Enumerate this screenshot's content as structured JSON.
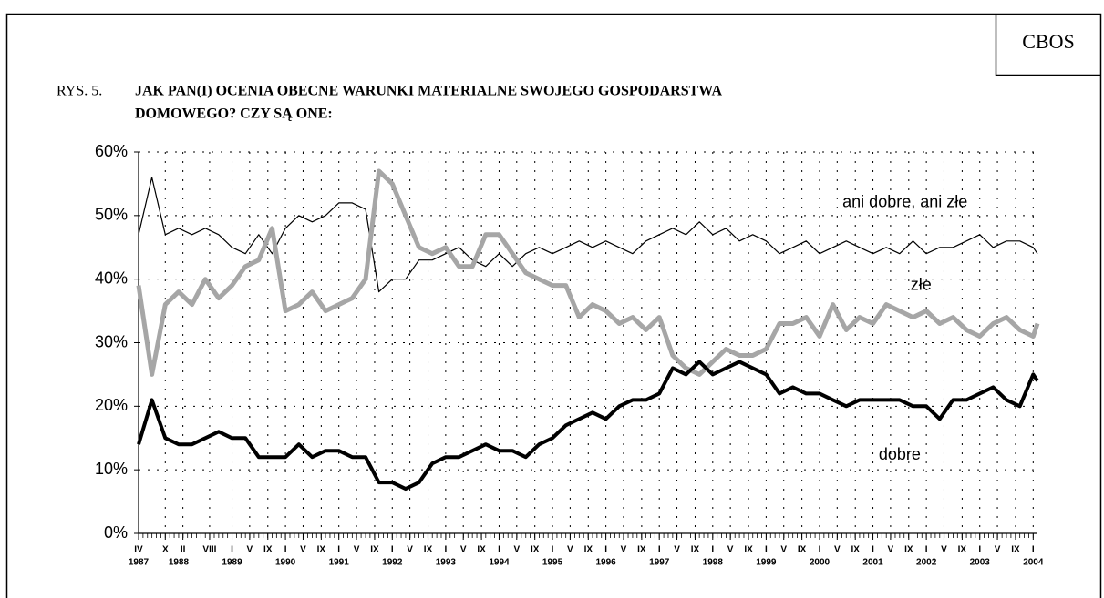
{
  "chart_data": {
    "type": "line",
    "badge": "CBOS",
    "figure_label": "RYS. 5.",
    "title_lines": [
      "JAK PAN(I) OCENIA OBECNE WARUNKI MATERIALNE SWOJEGO GOSPODARSTWA",
      "DOMOWEGO? CZY SĄ ONE:"
    ],
    "x": [
      1987.25,
      1987.5,
      1987.75,
      1988,
      1988.25,
      1988.5,
      1988.75,
      1989,
      1989.25,
      1989.5,
      1989.75,
      1990,
      1990.25,
      1990.5,
      1990.75,
      1991,
      1991.25,
      1991.5,
      1991.75,
      1992,
      1992.25,
      1992.5,
      1992.75,
      1993,
      1993.25,
      1993.5,
      1993.75,
      1994,
      1994.25,
      1994.5,
      1994.75,
      1995,
      1995.25,
      1995.5,
      1995.75,
      1996,
      1996.25,
      1996.5,
      1996.75,
      1997,
      1997.25,
      1997.5,
      1997.75,
      1998,
      1998.25,
      1998.5,
      1998.75,
      1999,
      1999.25,
      1999.5,
      1999.75,
      2000,
      2000.25,
      2000.5,
      2000.75,
      2001,
      2001.25,
      2001.5,
      2001.75,
      2002,
      2002.25,
      2002.5,
      2002.75,
      2003,
      2003.25,
      2003.5,
      2003.75,
      2004,
      2004.08
    ],
    "series": [
      {
        "name": "ani dobre, ani złe",
        "color": "#000000",
        "width": 1.2,
        "values": [
          47,
          56,
          47,
          48,
          47,
          48,
          47,
          45,
          44,
          47,
          44,
          48,
          50,
          49,
          50,
          52,
          52,
          51,
          38,
          40,
          40,
          43,
          43,
          44,
          45,
          43,
          42,
          44,
          42,
          44,
          45,
          44,
          45,
          46,
          45,
          46,
          45,
          44,
          46,
          47,
          48,
          47,
          49,
          47,
          48,
          46,
          47,
          46,
          44,
          45,
          46,
          44,
          45,
          46,
          45,
          44,
          45,
          44,
          46,
          44,
          45,
          45,
          46,
          47,
          45,
          46,
          46,
          45,
          44
        ]
      },
      {
        "name": "złe",
        "color": "#a6a6a6",
        "width": 5,
        "values": [
          39,
          25,
          36,
          38,
          36,
          40,
          37,
          39,
          42,
          43,
          48,
          35,
          36,
          38,
          35,
          36,
          37,
          40,
          57,
          55,
          50,
          45,
          44,
          45,
          42,
          42,
          47,
          47,
          44,
          41,
          40,
          39,
          39,
          34,
          36,
          35,
          33,
          34,
          32,
          34,
          28,
          26,
          25,
          27,
          29,
          28,
          28,
          29,
          33,
          33,
          34,
          31,
          36,
          32,
          34,
          33,
          36,
          35,
          34,
          35,
          33,
          34,
          32,
          31,
          33,
          34,
          32,
          31,
          33
        ]
      },
      {
        "name": "dobre",
        "color": "#000000",
        "width": 4,
        "values": [
          14,
          21,
          15,
          14,
          14,
          15,
          16,
          15,
          15,
          12,
          12,
          12,
          14,
          12,
          13,
          13,
          12,
          12,
          8,
          8,
          7,
          8,
          11,
          12,
          12,
          13,
          14,
          13,
          13,
          12,
          14,
          15,
          17,
          18,
          19,
          18,
          20,
          21,
          21,
          22,
          26,
          25,
          27,
          25,
          26,
          27,
          26,
          25,
          22,
          23,
          22,
          22,
          21,
          20,
          21,
          21,
          21,
          21,
          20,
          20,
          18,
          21,
          21,
          22,
          23,
          21,
          20,
          25,
          24
        ]
      }
    ],
    "xlim": [
      1987.25,
      2004.08
    ],
    "ylim": [
      0,
      60
    ],
    "yticks": [
      {
        "value": 0,
        "label": "0%"
      },
      {
        "value": 10,
        "label": "10%"
      },
      {
        "value": 20,
        "label": "20%"
      },
      {
        "value": 30,
        "label": "30%"
      },
      {
        "value": 40,
        "label": "40%"
      },
      {
        "value": 50,
        "label": "50%"
      },
      {
        "value": 60,
        "label": "60%"
      }
    ],
    "xticks": [
      {
        "value": 1987.25,
        "label": "IV"
      },
      {
        "value": 1987.75,
        "label": "X"
      },
      {
        "value": 1988.08,
        "label": "II"
      },
      {
        "value": 1988.58,
        "label": "VIII"
      },
      {
        "value": 1989,
        "label": "I"
      },
      {
        "value": 1989.33,
        "label": "V"
      },
      {
        "value": 1989.67,
        "label": "IX"
      },
      {
        "value": 1990,
        "label": "I"
      },
      {
        "value": 1990.33,
        "label": "V"
      },
      {
        "value": 1990.67,
        "label": "IX"
      },
      {
        "value": 1991,
        "label": "I"
      },
      {
        "value": 1991.33,
        "label": "V"
      },
      {
        "value": 1991.67,
        "label": "IX"
      },
      {
        "value": 1992,
        "label": "I"
      },
      {
        "value": 1992.33,
        "label": "V"
      },
      {
        "value": 1992.67,
        "label": "IX"
      },
      {
        "value": 1993,
        "label": "I"
      },
      {
        "value": 1993.33,
        "label": "V"
      },
      {
        "value": 1993.67,
        "label": "IX"
      },
      {
        "value": 1994,
        "label": "I"
      },
      {
        "value": 1994.33,
        "label": "V"
      },
      {
        "value": 1994.67,
        "label": "IX"
      },
      {
        "value": 1995,
        "label": "I"
      },
      {
        "value": 1995.33,
        "label": "V"
      },
      {
        "value": 1995.67,
        "label": "IX"
      },
      {
        "value": 1996,
        "label": "I"
      },
      {
        "value": 1996.33,
        "label": "V"
      },
      {
        "value": 1996.67,
        "label": "IX"
      },
      {
        "value": 1997,
        "label": "I"
      },
      {
        "value": 1997.33,
        "label": "V"
      },
      {
        "value": 1997.67,
        "label": "IX"
      },
      {
        "value": 1998,
        "label": "I"
      },
      {
        "value": 1998.33,
        "label": "V"
      },
      {
        "value": 1998.67,
        "label": "IX"
      },
      {
        "value": 1999,
        "label": "I"
      },
      {
        "value": 1999.33,
        "label": "V"
      },
      {
        "value": 1999.67,
        "label": "IX"
      },
      {
        "value": 2000,
        "label": "I"
      },
      {
        "value": 2000.33,
        "label": "V"
      },
      {
        "value": 2000.67,
        "label": "IX"
      },
      {
        "value": 2001,
        "label": "I"
      },
      {
        "value": 2001.33,
        "label": "V"
      },
      {
        "value": 2001.67,
        "label": "IX"
      },
      {
        "value": 2002,
        "label": "I"
      },
      {
        "value": 2002.33,
        "label": "V"
      },
      {
        "value": 2002.67,
        "label": "IX"
      },
      {
        "value": 2003,
        "label": "I"
      },
      {
        "value": 2003.33,
        "label": "V"
      },
      {
        "value": 2003.67,
        "label": "IX"
      },
      {
        "value": 2004,
        "label": "I"
      }
    ],
    "year_ticks": [
      {
        "value": 1987.25,
        "label": "1987"
      },
      1988,
      1989,
      1990,
      1991,
      1992,
      1993,
      1994,
      1995,
      1996,
      1997,
      1998,
      1999,
      2000,
      2001,
      2002,
      2003,
      2004
    ],
    "annotations": [
      {
        "text": "ani dobre, ani złe",
        "x": 2001.6,
        "y": 52
      },
      {
        "text": "złe",
        "x": 2001.9,
        "y": 39
      },
      {
        "text": "dobre",
        "x": 2001.5,
        "y": 12.3
      }
    ],
    "grid": true
  }
}
